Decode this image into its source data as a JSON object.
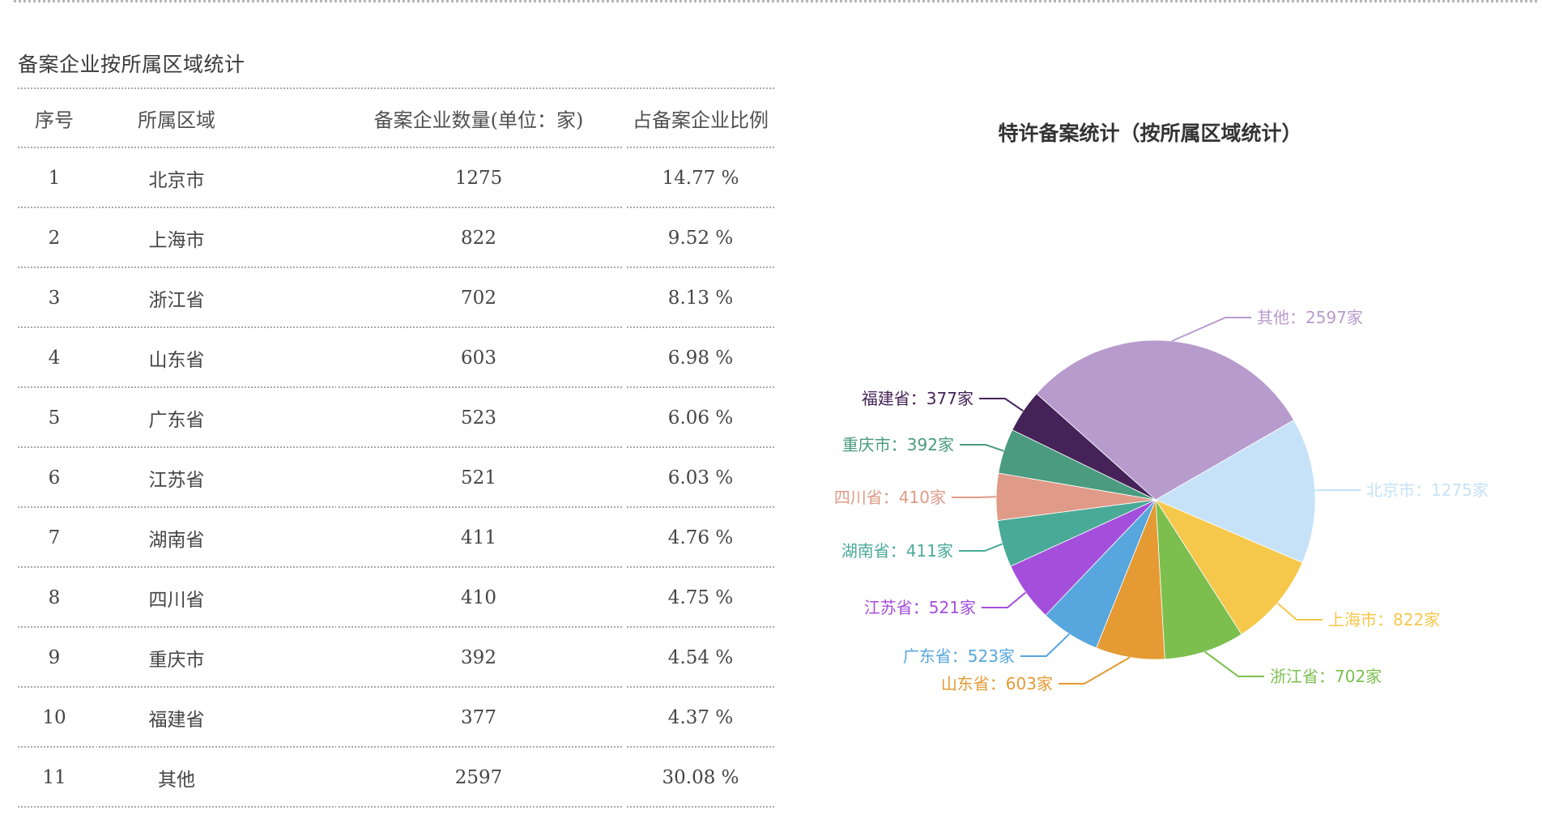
{
  "section": {
    "title": "备案企业按所属区域统计"
  },
  "table": {
    "headers": [
      "序号",
      "所属区域",
      "备案企业数量(单位：家)",
      "占备案企业比例"
    ],
    "rows": [
      {
        "index": "1",
        "region": "北京市",
        "count": "1275",
        "ratio": "14.77 %"
      },
      {
        "index": "2",
        "region": "上海市",
        "count": "822",
        "ratio": "9.52 %"
      },
      {
        "index": "3",
        "region": "浙江省",
        "count": "702",
        "ratio": "8.13 %"
      },
      {
        "index": "4",
        "region": "山东省",
        "count": "603",
        "ratio": "6.98 %"
      },
      {
        "index": "5",
        "region": "广东省",
        "count": "523",
        "ratio": "6.06 %"
      },
      {
        "index": "6",
        "region": "江苏省",
        "count": "521",
        "ratio": "6.03 %"
      },
      {
        "index": "7",
        "region": "湖南省",
        "count": "411",
        "ratio": "4.76 %"
      },
      {
        "index": "8",
        "region": "四川省",
        "count": "410",
        "ratio": "4.75 %"
      },
      {
        "index": "9",
        "region": "重庆市",
        "count": "392",
        "ratio": "4.54 %"
      },
      {
        "index": "10",
        "region": "福建省",
        "count": "377",
        "ratio": "4.37 %"
      },
      {
        "index": "11",
        "region": "其他",
        "count": "2597",
        "ratio": "30.08 %"
      }
    ]
  },
  "chart": {
    "title": "特许备案统计（按所属区域统计）",
    "label_separator": "：",
    "unit": "家"
  },
  "chart_data": {
    "type": "pie",
    "title": "特许备案统计（按所属区域统计）",
    "categories": [
      "北京市",
      "上海市",
      "浙江省",
      "山东省",
      "广东省",
      "江苏省",
      "湖南省",
      "四川省",
      "重庆市",
      "福建省",
      "其他"
    ],
    "values": [
      1275,
      822,
      702,
      603,
      523,
      521,
      411,
      410,
      392,
      377,
      2597
    ],
    "colors": [
      "#C5E2F8",
      "#F5C84B",
      "#7CBF4F",
      "#E59A33",
      "#57A7DE",
      "#A44FDB",
      "#4AAA98",
      "#DF9B88",
      "#4A9B7F",
      "#452358",
      "#B89BCD"
    ],
    "labels": [
      "北京市：1275家",
      "上海市：822家",
      "浙江省：702家",
      "山东省：603家",
      "广东省：523家",
      "江苏省：521家",
      "湖南省：411家",
      "四川省：410家",
      "重庆市：392家",
      "福建省：377家",
      "其他：2597家"
    ],
    "legend": "none",
    "start_angle_deg": 30,
    "clockwise": true
  }
}
